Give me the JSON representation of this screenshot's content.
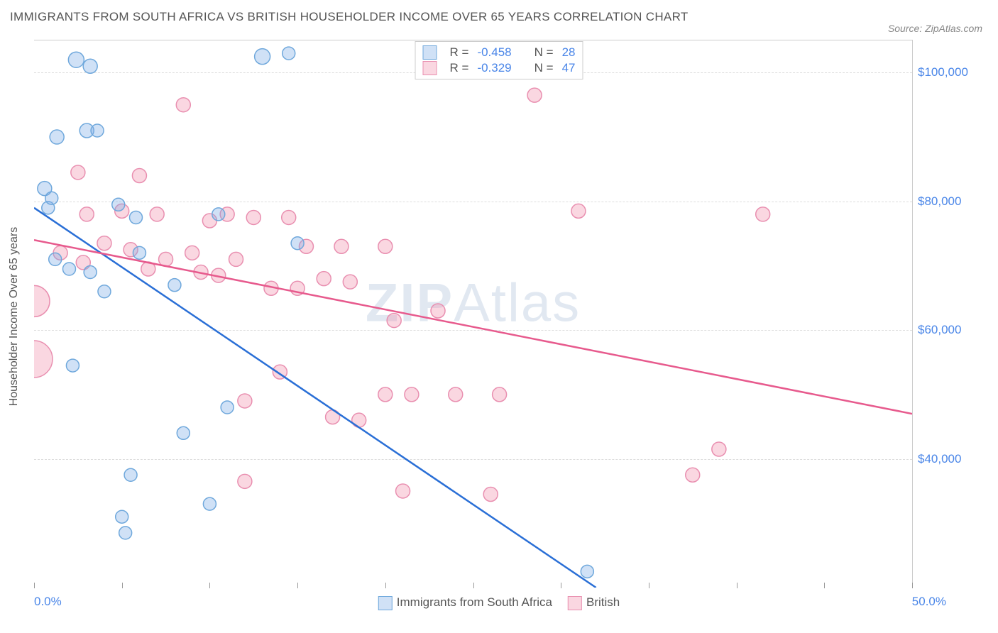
{
  "title": "IMMIGRANTS FROM SOUTH AFRICA VS BRITISH HOUSEHOLDER INCOME OVER 65 YEARS CORRELATION CHART",
  "source_prefix": "Source: ",
  "source_name": "ZipAtlas.com",
  "y_axis_label": "Householder Income Over 65 years",
  "watermark_bold": "ZIP",
  "watermark_rest": "Atlas",
  "chart": {
    "type": "scatter-correlation",
    "background_color": "#ffffff",
    "grid_color": "#dddddd",
    "border_color": "#cccccc",
    "xlim": [
      0,
      50
    ],
    "ylim": [
      20000,
      105000
    ],
    "x_min_label": "0.0%",
    "x_max_label": "50.0%",
    "x_ticks": [
      0,
      5,
      10,
      15,
      20,
      25,
      30,
      35,
      40,
      45,
      50
    ],
    "y_ticks": [
      40000,
      60000,
      80000,
      100000
    ],
    "y_tick_labels": [
      "$40,000",
      "$60,000",
      "$80,000",
      "$100,000"
    ],
    "label_fontsize": 17,
    "tick_color": "#4a86e8",
    "series": [
      {
        "key": "sa",
        "name": "Immigrants from South Africa",
        "fill": "rgba(120,170,230,0.35)",
        "stroke": "#6fa8dc",
        "line_color": "#2a6fd6",
        "line_width": 2.5,
        "R": "-0.458",
        "N": "28",
        "trend": {
          "x1": 0,
          "y1": 79000,
          "x2": 32,
          "y2": 20000
        },
        "points": [
          {
            "x": 0.6,
            "y": 82000,
            "r": 10
          },
          {
            "x": 0.8,
            "y": 79000,
            "r": 9
          },
          {
            "x": 1.0,
            "y": 80500,
            "r": 9
          },
          {
            "x": 1.2,
            "y": 71000,
            "r": 9
          },
          {
            "x": 1.3,
            "y": 90000,
            "r": 10
          },
          {
            "x": 2.4,
            "y": 102000,
            "r": 11
          },
          {
            "x": 3.2,
            "y": 101000,
            "r": 10
          },
          {
            "x": 3.0,
            "y": 91000,
            "r": 10
          },
          {
            "x": 3.6,
            "y": 91000,
            "r": 9
          },
          {
            "x": 2.0,
            "y": 69500,
            "r": 9
          },
          {
            "x": 3.2,
            "y": 69000,
            "r": 9
          },
          {
            "x": 4.0,
            "y": 66000,
            "r": 9
          },
          {
            "x": 2.2,
            "y": 54500,
            "r": 9
          },
          {
            "x": 5.8,
            "y": 77500,
            "r": 9
          },
          {
            "x": 6.0,
            "y": 72000,
            "r": 9
          },
          {
            "x": 4.8,
            "y": 79500,
            "r": 9
          },
          {
            "x": 8.0,
            "y": 67000,
            "r": 9
          },
          {
            "x": 8.5,
            "y": 44000,
            "r": 9
          },
          {
            "x": 5.5,
            "y": 37500,
            "r": 9
          },
          {
            "x": 5.0,
            "y": 31000,
            "r": 9
          },
          {
            "x": 5.2,
            "y": 28500,
            "r": 9
          },
          {
            "x": 10.0,
            "y": 33000,
            "r": 9
          },
          {
            "x": 11.0,
            "y": 48000,
            "r": 9
          },
          {
            "x": 10.5,
            "y": 78000,
            "r": 9
          },
          {
            "x": 13.0,
            "y": 102500,
            "r": 11
          },
          {
            "x": 14.5,
            "y": 103000,
            "r": 9
          },
          {
            "x": 15.0,
            "y": 73500,
            "r": 9
          },
          {
            "x": 31.5,
            "y": 22500,
            "r": 9
          }
        ]
      },
      {
        "key": "british",
        "name": "British",
        "fill": "rgba(240,140,170,0.35)",
        "stroke": "#e98fb0",
        "line_color": "#e75a8d",
        "line_width": 2.5,
        "R": "-0.329",
        "N": "47",
        "trend": {
          "x1": 0,
          "y1": 74000,
          "x2": 50,
          "y2": 47000
        },
        "points": [
          {
            "x": 0.0,
            "y": 64500,
            "r": 22
          },
          {
            "x": 0.0,
            "y": 55500,
            "r": 26
          },
          {
            "x": 1.5,
            "y": 72000,
            "r": 10
          },
          {
            "x": 2.5,
            "y": 84500,
            "r": 10
          },
          {
            "x": 2.8,
            "y": 70500,
            "r": 10
          },
          {
            "x": 3.0,
            "y": 78000,
            "r": 10
          },
          {
            "x": 4.0,
            "y": 73500,
            "r": 10
          },
          {
            "x": 5.0,
            "y": 78500,
            "r": 10
          },
          {
            "x": 5.5,
            "y": 72500,
            "r": 10
          },
          {
            "x": 6.0,
            "y": 84000,
            "r": 10
          },
          {
            "x": 6.5,
            "y": 69500,
            "r": 10
          },
          {
            "x": 7.0,
            "y": 78000,
            "r": 10
          },
          {
            "x": 7.5,
            "y": 71000,
            "r": 10
          },
          {
            "x": 8.5,
            "y": 95000,
            "r": 10
          },
          {
            "x": 9.0,
            "y": 72000,
            "r": 10
          },
          {
            "x": 9.5,
            "y": 69000,
            "r": 10
          },
          {
            "x": 10.0,
            "y": 77000,
            "r": 10
          },
          {
            "x": 10.5,
            "y": 68500,
            "r": 10
          },
          {
            "x": 11.0,
            "y": 78000,
            "r": 10
          },
          {
            "x": 11.5,
            "y": 71000,
            "r": 10
          },
          {
            "x": 12.5,
            "y": 77500,
            "r": 10
          },
          {
            "x": 12.0,
            "y": 49000,
            "r": 10
          },
          {
            "x": 12.0,
            "y": 36500,
            "r": 10
          },
          {
            "x": 13.5,
            "y": 66500,
            "r": 10
          },
          {
            "x": 14.0,
            "y": 53500,
            "r": 10
          },
          {
            "x": 14.5,
            "y": 77500,
            "r": 10
          },
          {
            "x": 15.0,
            "y": 66500,
            "r": 10
          },
          {
            "x": 15.5,
            "y": 73000,
            "r": 10
          },
          {
            "x": 16.5,
            "y": 68000,
            "r": 10
          },
          {
            "x": 17.0,
            "y": 46500,
            "r": 10
          },
          {
            "x": 17.5,
            "y": 73000,
            "r": 10
          },
          {
            "x": 18.0,
            "y": 67500,
            "r": 10
          },
          {
            "x": 18.5,
            "y": 46000,
            "r": 10
          },
          {
            "x": 20.0,
            "y": 73000,
            "r": 10
          },
          {
            "x": 20.5,
            "y": 61500,
            "r": 10
          },
          {
            "x": 20.0,
            "y": 50000,
            "r": 10
          },
          {
            "x": 21.5,
            "y": 50000,
            "r": 10
          },
          {
            "x": 21.0,
            "y": 35000,
            "r": 10
          },
          {
            "x": 23.0,
            "y": 63000,
            "r": 10
          },
          {
            "x": 24.0,
            "y": 50000,
            "r": 10
          },
          {
            "x": 26.5,
            "y": 50000,
            "r": 10
          },
          {
            "x": 26.0,
            "y": 34500,
            "r": 10
          },
          {
            "x": 28.5,
            "y": 96500,
            "r": 10
          },
          {
            "x": 31.0,
            "y": 78500,
            "r": 10
          },
          {
            "x": 37.5,
            "y": 37500,
            "r": 10
          },
          {
            "x": 39.0,
            "y": 41500,
            "r": 10
          },
          {
            "x": 41.5,
            "y": 78000,
            "r": 10
          }
        ]
      }
    ]
  },
  "legend_r_label": "R =",
  "legend_n_label": "N ="
}
